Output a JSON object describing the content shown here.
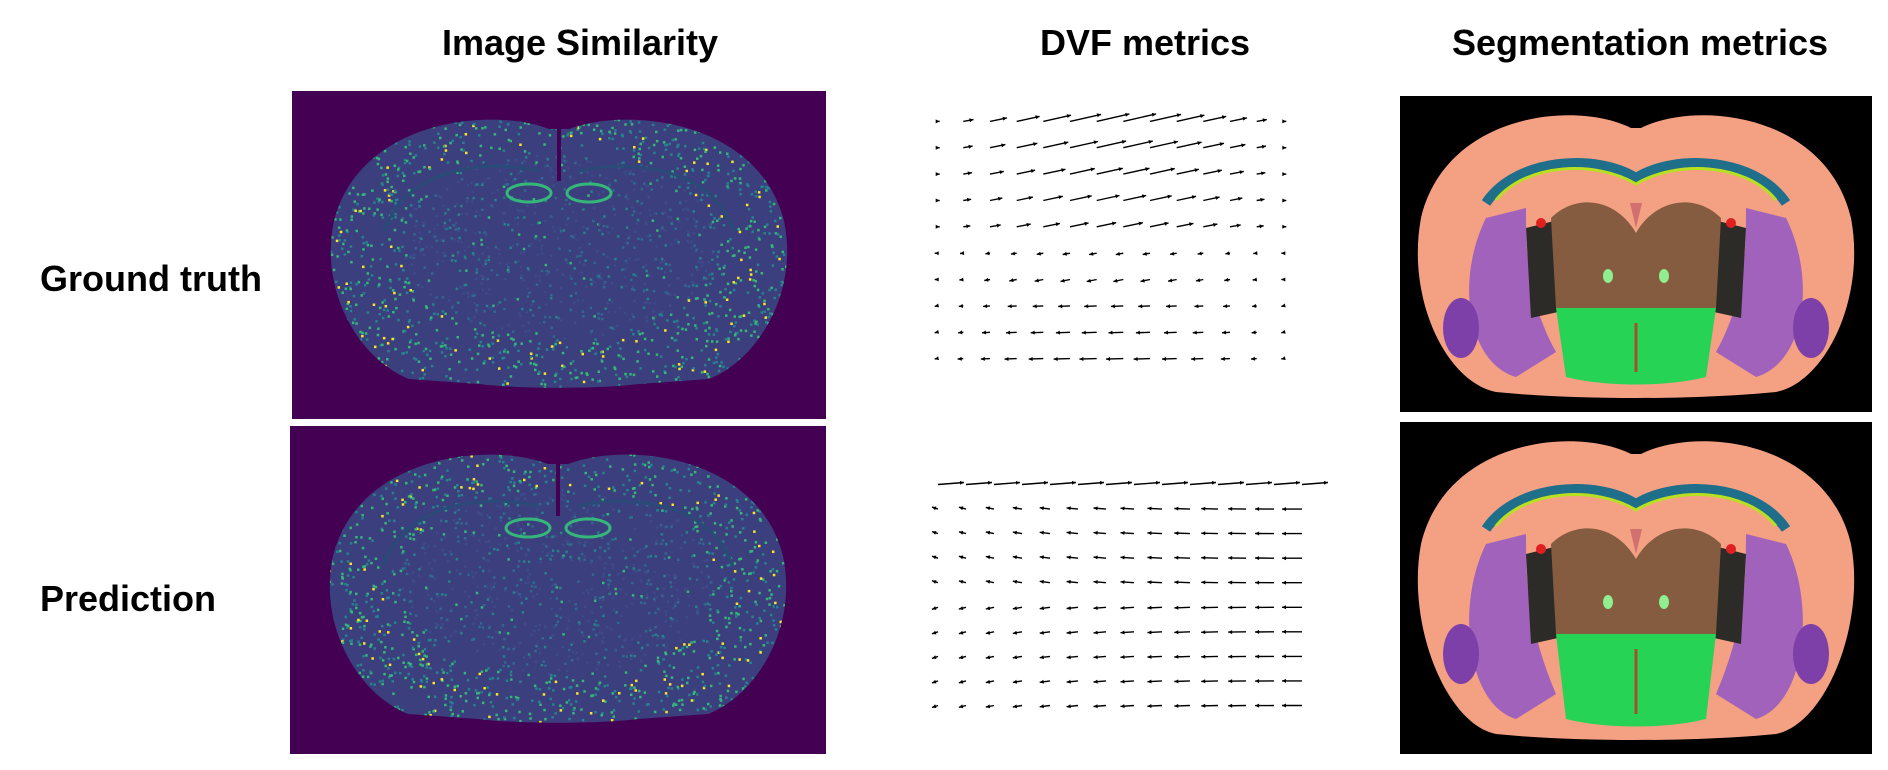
{
  "columns": {
    "image_similarity": "Image Similarity",
    "dvf_metrics": "DVF metrics",
    "segmentation_metrics": "Segmentation metrics"
  },
  "rows": {
    "ground_truth": "Ground truth",
    "prediction": "Prediction"
  },
  "colors": {
    "viridis_background": "#440154",
    "tissue_teal": "#2c728e",
    "tissue_green": "#35b779",
    "tissue_yellow": "#fde725",
    "seg_background": "#000000",
    "seg_cortex": "#f4a083",
    "seg_lateral": "#a062bb",
    "seg_center": "#855c3f",
    "seg_brainstem": "#26d354",
    "seg_ventricle": "#1f6f8b",
    "seg_dark": "#2d2b28",
    "seg_red": "#e02020",
    "seg_light_green": "#90ee90",
    "seg_lime": "#b8e020",
    "seg_purple_dark": "#7d3fa8",
    "arrow": "#000000"
  }
}
